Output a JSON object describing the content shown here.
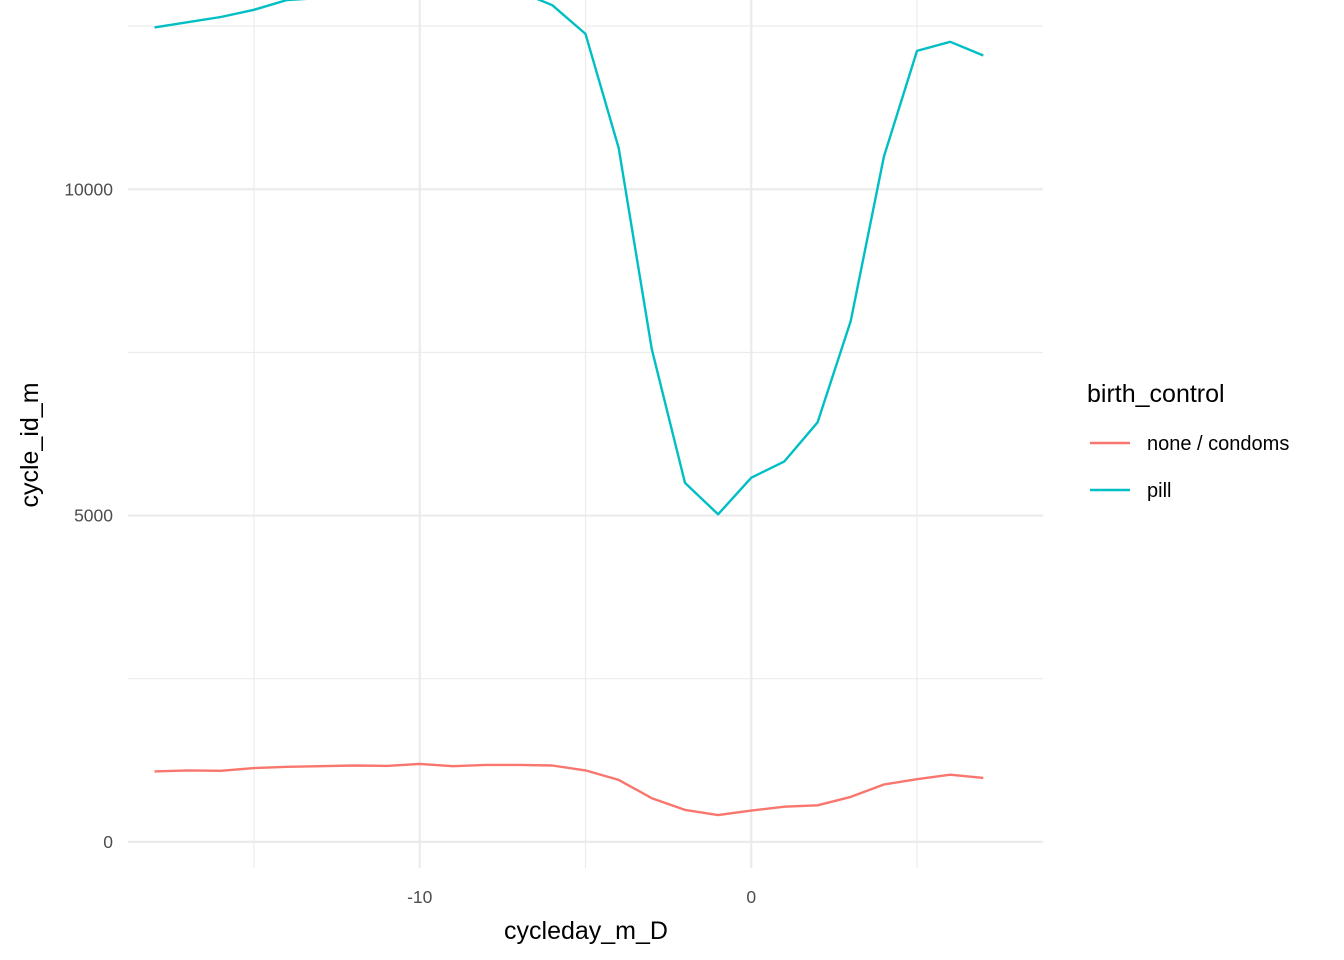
{
  "chart_data": {
    "type": "line",
    "xlabel": "cycleday_m_D",
    "ylabel": "cycle_id_m",
    "xlim": [
      -18.8,
      8.8
    ],
    "ylim": [
      -400,
      12900
    ],
    "x_major_ticks": [
      -10,
      0
    ],
    "x_minor_ticks": [
      -15,
      -5,
      5
    ],
    "y_major_ticks": [
      0,
      5000,
      10000
    ],
    "y_minor_ticks": [
      2500,
      7500,
      12500
    ],
    "x_tick_labels": [
      "-10",
      "0"
    ],
    "y_tick_labels": [
      "0",
      "5000",
      "10000"
    ],
    "grid": true,
    "legend": {
      "title": "birth_control",
      "position": "right"
    },
    "series": [
      {
        "name": "none / condoms",
        "color": "#F8766D",
        "x": [
          -18,
          -17,
          -16,
          -15,
          -14,
          -13,
          -12,
          -11,
          -10,
          -9,
          -8,
          -7,
          -6,
          -5,
          -4,
          -3,
          -2,
          -1,
          0,
          1,
          2,
          3,
          4,
          5,
          6,
          7
        ],
        "y": [
          1080,
          1095,
          1090,
          1130,
          1150,
          1160,
          1170,
          1165,
          1195,
          1160,
          1180,
          1180,
          1170,
          1095,
          950,
          670,
          490,
          410,
          480,
          540,
          560,
          690,
          880,
          960,
          1030,
          980
        ]
      },
      {
        "name": "pill",
        "color": "#00BFC4",
        "x": [
          -18,
          -17,
          -16,
          -15,
          -14,
          -13,
          -12,
          -11,
          -10,
          -9,
          -8,
          -7,
          -6,
          -5,
          -4,
          -3,
          -2,
          -1,
          0,
          1,
          2,
          3,
          4,
          5,
          6,
          7
        ],
        "y": [
          12480,
          12560,
          12640,
          12750,
          12900,
          12930,
          12980,
          12970,
          13030,
          13110,
          13090,
          13030,
          12820,
          12380,
          10630,
          7550,
          5500,
          5020,
          5580,
          5830,
          6430,
          7980,
          10500,
          12120,
          12260,
          12050
        ]
      }
    ]
  }
}
